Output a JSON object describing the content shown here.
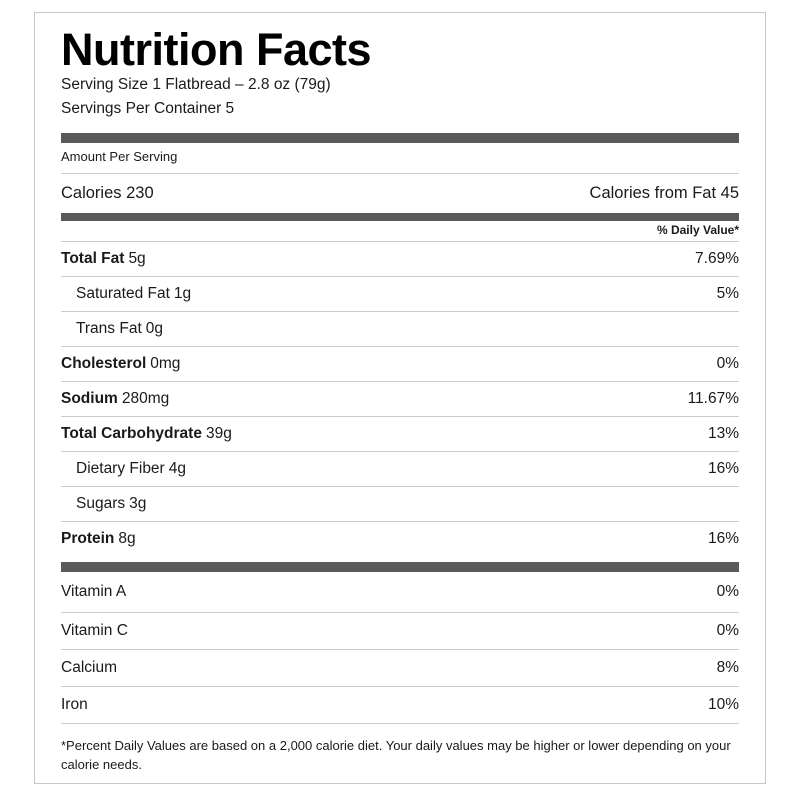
{
  "label": {
    "title": "Nutrition Facts",
    "serving": {
      "size_line": "Serving Size 1 Flatbread – 2.8 oz (79g)",
      "per_container_line": "Servings Per Container 5"
    },
    "amount_per_serving": "Amount Per Serving",
    "calories": {
      "left": "Calories 230",
      "right": "Calories from Fat 45"
    },
    "daily_value_header": "% Daily Value*",
    "nutrients": [
      {
        "name": "Total Fat",
        "amount": "5g",
        "dv": "7.69%"
      },
      {
        "name": "Saturated Fat",
        "amount": "1g",
        "dv": "5%"
      },
      {
        "name": "Trans Fat",
        "amount": "0g",
        "dv": ""
      },
      {
        "name": "Cholesterol",
        "amount": "0mg",
        "dv": "0%"
      },
      {
        "name": "Sodium",
        "amount": "280mg",
        "dv": "11.67%"
      },
      {
        "name": "Total Carbohydrate",
        "amount": "39g",
        "dv": "13%"
      },
      {
        "name": "Dietary Fiber",
        "amount": "4g",
        "dv": "16%"
      },
      {
        "name": "Sugars",
        "amount": "3g",
        "dv": ""
      },
      {
        "name": "Protein",
        "amount": "8g",
        "dv": "16%"
      }
    ],
    "vitamins": [
      {
        "name": "Vitamin A",
        "dv": "0%"
      },
      {
        "name": "Vitamin C",
        "dv": "0%"
      },
      {
        "name": "Calcium",
        "dv": "8%"
      },
      {
        "name": "Iron",
        "dv": "10%"
      }
    ],
    "footnote": "*Percent Daily Values are based on a 2,000 calorie diet. Your daily values may be higher or lower depending on your calorie needs.",
    "colors": {
      "divider_bar": "#5a5a5a",
      "separator_line": "#cccccc",
      "border": "#c8c8c8",
      "text": "#1a1a1a"
    }
  }
}
